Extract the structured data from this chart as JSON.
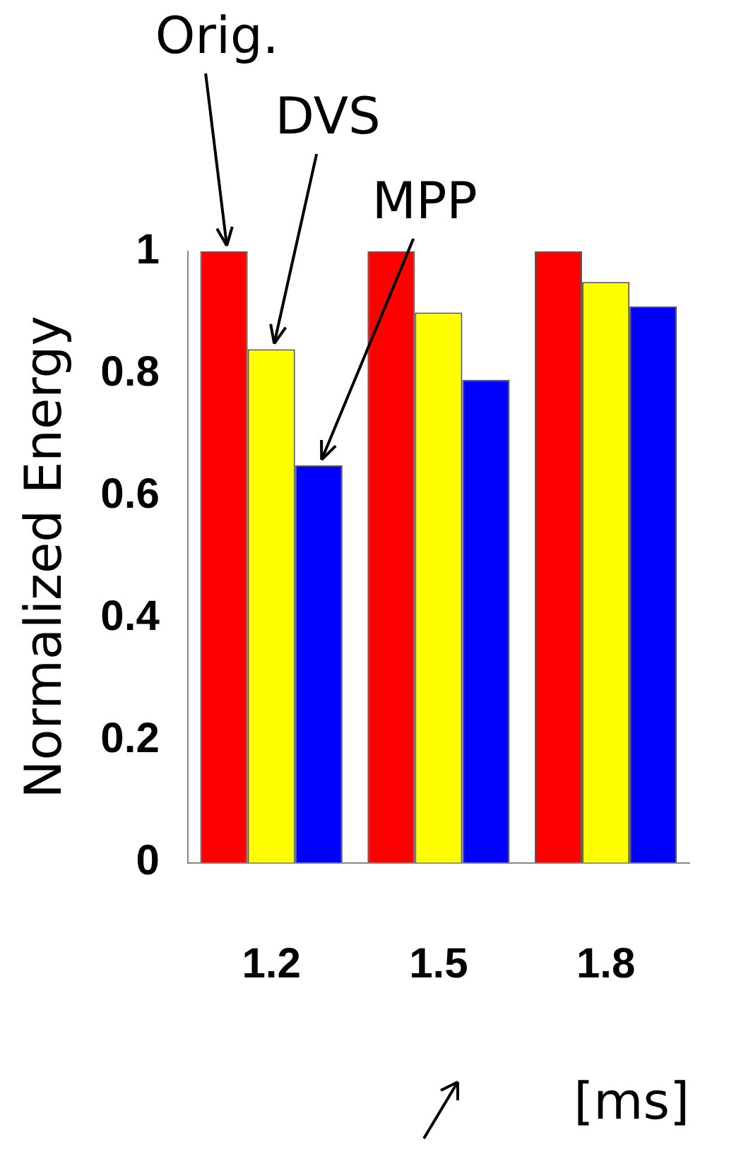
{
  "chart_data": {
    "type": "bar",
    "ylabel": "Normalized Energy",
    "xlabel": "[ms]",
    "categories": [
      "1.2",
      "1.5",
      "1.8"
    ],
    "series": [
      {
        "name": "Orig.",
        "color": "#ff0000",
        "values": [
          1,
          1,
          1
        ]
      },
      {
        "name": "DVS",
        "color": "#ffff00",
        "values": [
          0.84,
          0.9,
          0.95
        ]
      },
      {
        "name": "MPP",
        "color": "#0000ff",
        "values": [
          0.65,
          0.79,
          0.91
        ]
      }
    ],
    "ylim": [
      0,
      1
    ],
    "yticks": [
      0,
      0.2,
      0.4,
      0.6,
      0.8,
      1
    ],
    "grid": false,
    "legend": false
  }
}
